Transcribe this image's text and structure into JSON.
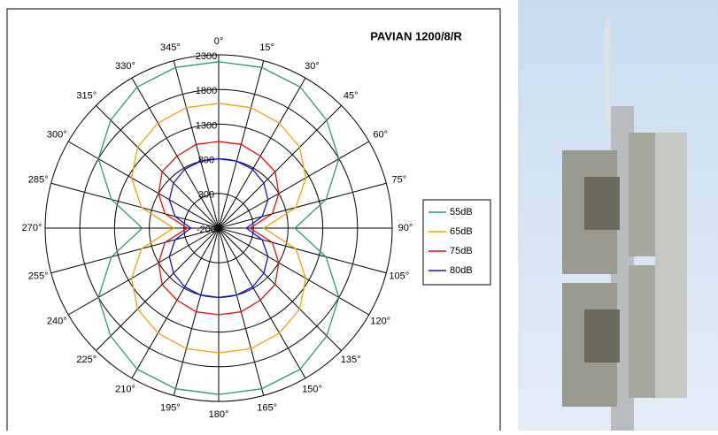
{
  "chart_data": {
    "type": "polar",
    "title": "PAVIAN 1200/8/R",
    "categories": [
      "0°",
      "15°",
      "30°",
      "45°",
      "60°",
      "75°",
      "90°",
      "105°",
      "120°",
      "135°",
      "150°",
      "165°",
      "180°",
      "195°",
      "210°",
      "225°",
      "240°",
      "255°",
      "270°",
      "285°",
      "300°",
      "315°",
      "330°",
      "345°"
    ],
    "rlim": [
      -200,
      2300
    ],
    "rticks": [
      -200,
      300,
      800,
      1300,
      1800,
      2300
    ],
    "grid": true,
    "legend": "right",
    "series": [
      {
        "name": "55dB",
        "color": "#2e9a6a",
        "values": [
          2200,
          2200,
          2150,
          2000,
          1800,
          1400,
          900,
          1400,
          1800,
          2000,
          2150,
          2200,
          2200,
          2200,
          2150,
          2000,
          1800,
          1400,
          900,
          1400,
          1800,
          2000,
          2150,
          2200
        ]
      },
      {
        "name": "65dB",
        "color": "#f5a000",
        "values": [
          1600,
          1600,
          1550,
          1450,
          1250,
          950,
          450,
          950,
          1250,
          1450,
          1550,
          1600,
          1600,
          1600,
          1550,
          1450,
          1250,
          950,
          450,
          950,
          1250,
          1450,
          1550,
          1600
        ]
      },
      {
        "name": "75dB",
        "color": "#e01010",
        "values": [
          1050,
          1050,
          1000,
          950,
          800,
          600,
          250,
          600,
          800,
          950,
          1000,
          1050,
          1050,
          1050,
          1000,
          950,
          800,
          600,
          250,
          600,
          800,
          950,
          1000,
          1050
        ]
      },
      {
        "name": "80dB",
        "color": "#1010e0",
        "values": [
          800,
          800,
          780,
          720,
          620,
          450,
          200,
          450,
          620,
          720,
          780,
          800,
          800,
          800,
          780,
          720,
          620,
          450,
          200,
          450,
          620,
          720,
          780,
          800
        ]
      }
    ]
  }
}
